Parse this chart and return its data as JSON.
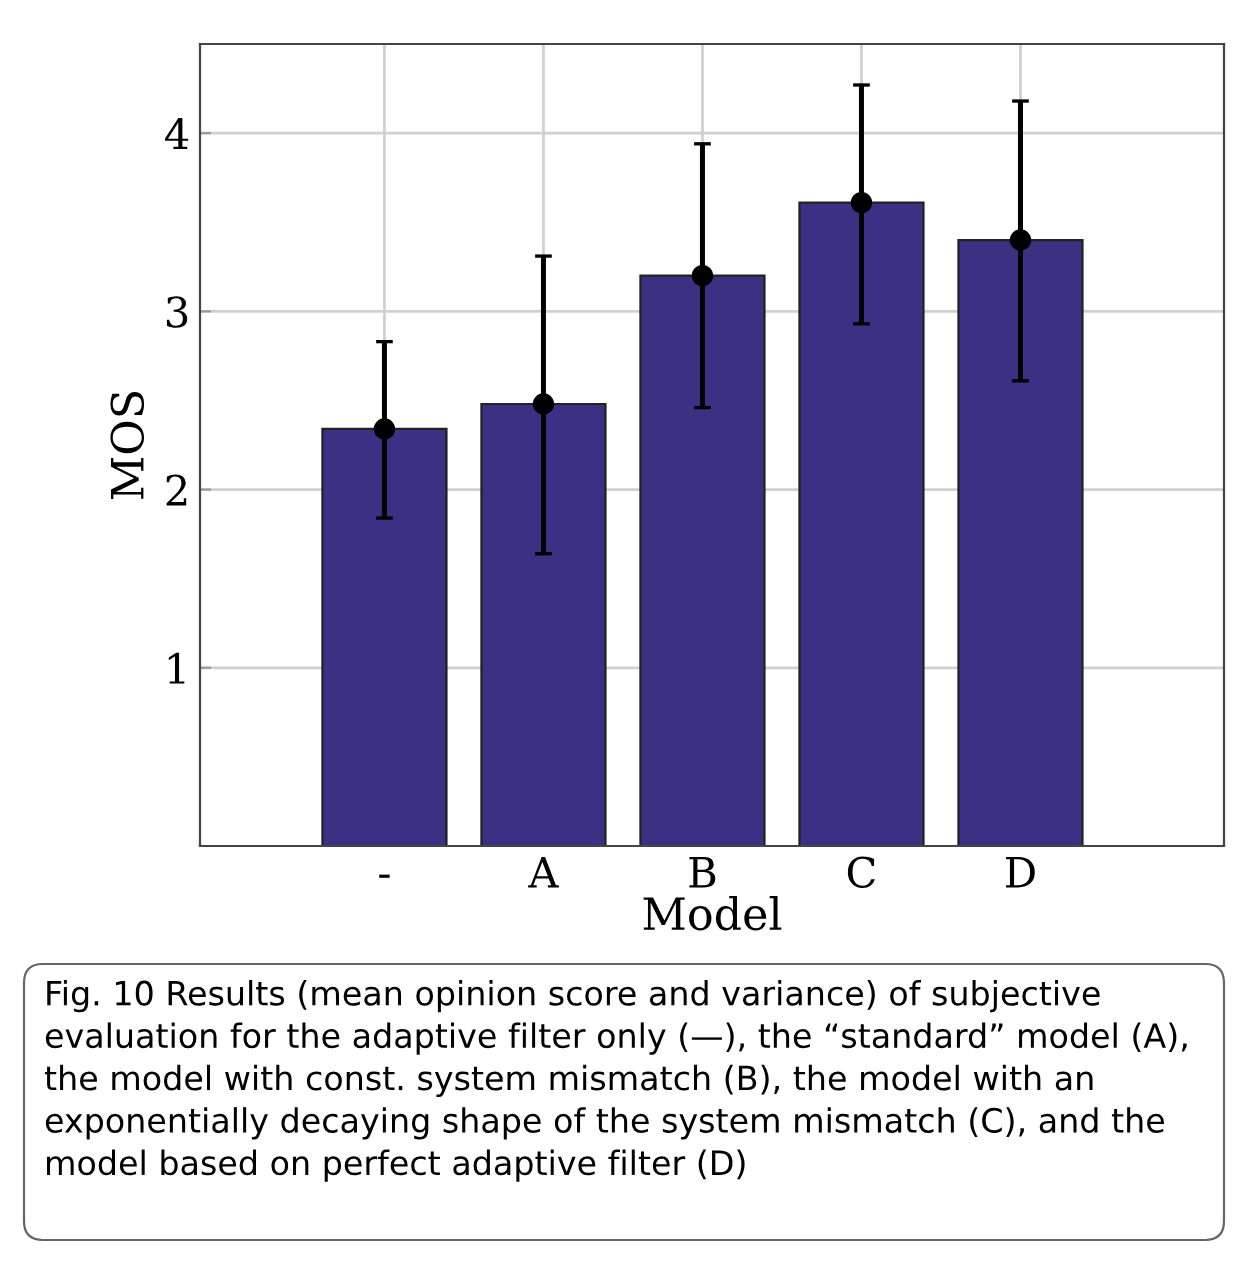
{
  "chart_data": {
    "type": "bar",
    "xlabel": "Model",
    "ylabel": "MOS",
    "categories": [
      "-",
      "A",
      "B",
      "C",
      "D"
    ],
    "series": [
      {
        "color": "#3a3185",
        "values": [
          2.34,
          2.48,
          3.2,
          3.61,
          3.4
        ],
        "errors": [
          [
            1.84,
            2.83
          ],
          [
            1.64,
            3.31
          ],
          [
            2.46,
            3.94
          ],
          [
            2.93,
            4.27
          ],
          [
            2.61,
            4.18
          ]
        ]
      },
      {
        "type": "scatter",
        "color": "#000000",
        "marker": "circle",
        "x": [
          "-",
          "A",
          "B",
          "C",
          "D"
        ],
        "values": [
          2.34,
          2.48,
          3.2,
          3.61,
          3.4
        ]
      }
    ],
    "ylim": [
      0,
      4.5
    ],
    "yticks": [
      1,
      2,
      3,
      4
    ],
    "grid": true,
    "annotations": [
      "Fig. 10 Results (mean opinion score and variance) of subjective evaluation for the adaptive filter only (—), the “standard” model (A), the model with const. system mismatch (B), the model with an exponentially decaying shape of the system mismatch (C), and the model based on perfect adaptive filter (D)"
    ]
  }
}
